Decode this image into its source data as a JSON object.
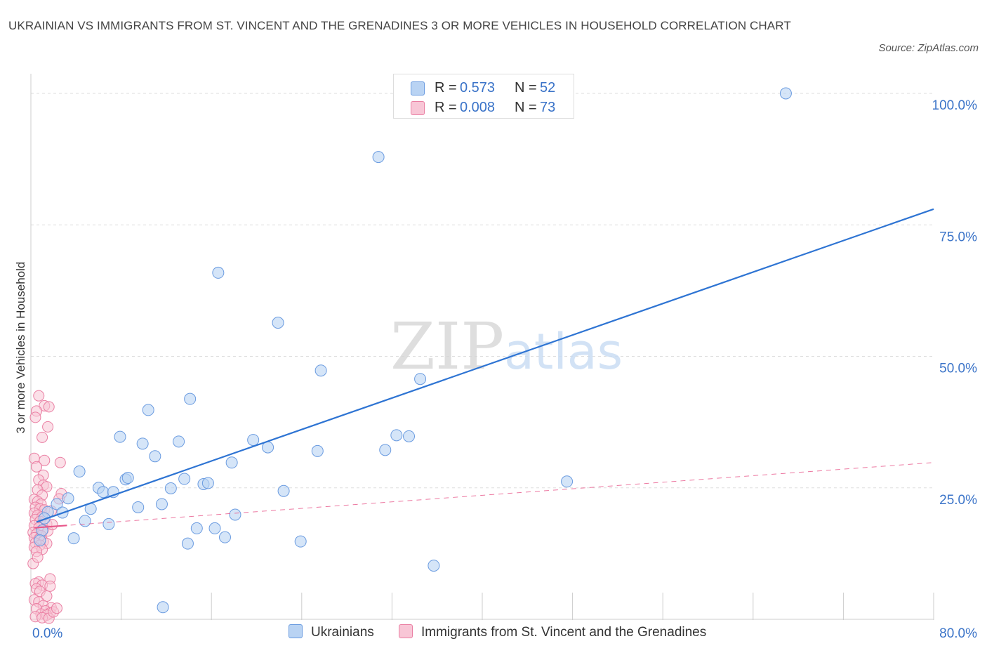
{
  "title": "UKRAINIAN VS IMMIGRANTS FROM ST. VINCENT AND THE GRENADINES 3 OR MORE VEHICLES IN HOUSEHOLD CORRELATION CHART",
  "source": "Source: ZipAtlas.com",
  "watermark": {
    "zip": "ZIP",
    "atlas": "atlas"
  },
  "legend": {
    "rows": [
      {
        "r_label": "R =",
        "r_value": "0.573",
        "n_label": "N =",
        "n_value": "52"
      },
      {
        "r_label": "R =",
        "r_value": "0.008",
        "n_label": "N =",
        "n_value": "73"
      }
    ]
  },
  "colors": {
    "blue_fill": "#b9d3f3",
    "blue_stroke": "#6a9be0",
    "blue_line": "#2e74d3",
    "pink_fill": "#f8c6d6",
    "pink_stroke": "#ea7fa3",
    "pink_line": "#e8578a",
    "tick_text": "#3a73c8",
    "grid": "#dddddd"
  },
  "chart_data": {
    "type": "scatter",
    "title": "UKRAINIAN VS IMMIGRANTS FROM ST. VINCENT AND THE GRENADINES 3 OR MORE VEHICLES IN HOUSEHOLD CORRELATION CHART",
    "xlabel": "",
    "ylabel": "3 or more Vehicles in Household",
    "xlim": [
      0,
      80
    ],
    "ylim": [
      0,
      100
    ],
    "x_tick_labels": [
      "0.0%",
      "80.0%"
    ],
    "y_ticks": [
      25,
      50,
      75,
      100
    ],
    "y_tick_labels": [
      "25.0%",
      "50.0%",
      "75.0%",
      "100.0%"
    ],
    "grid": true,
    "legend_position": "bottom",
    "series": [
      {
        "name": "Ukrainians",
        "r": 0.573,
        "n": 52,
        "trend": {
          "x": [
            0.5,
            80
          ],
          "y": [
            18.5,
            78
          ],
          "style": "solid"
        },
        "points": [
          [
            66.9,
            100.0
          ],
          [
            30.8,
            87.9
          ],
          [
            16.6,
            65.9
          ],
          [
            21.9,
            56.4
          ],
          [
            25.7,
            47.3
          ],
          [
            34.5,
            45.7
          ],
          [
            14.1,
            41.9
          ],
          [
            10.4,
            39.8
          ],
          [
            7.9,
            34.7
          ],
          [
            9.9,
            33.4
          ],
          [
            13.1,
            33.8
          ],
          [
            19.7,
            34.1
          ],
          [
            21.0,
            32.7
          ],
          [
            25.4,
            32.0
          ],
          [
            31.4,
            32.2
          ],
          [
            32.4,
            35.0
          ],
          [
            33.5,
            34.8
          ],
          [
            11.0,
            31.0
          ],
          [
            17.8,
            29.8
          ],
          [
            4.3,
            28.1
          ],
          [
            8.4,
            26.6
          ],
          [
            8.6,
            26.9
          ],
          [
            13.6,
            26.7
          ],
          [
            15.3,
            25.7
          ],
          [
            15.7,
            25.9
          ],
          [
            22.4,
            24.4
          ],
          [
            6.0,
            25.0
          ],
          [
            6.4,
            24.2
          ],
          [
            7.3,
            24.2
          ],
          [
            12.4,
            24.9
          ],
          [
            47.5,
            26.2
          ],
          [
            3.3,
            23.0
          ],
          [
            2.3,
            21.9
          ],
          [
            2.8,
            20.3
          ],
          [
            5.3,
            21.0
          ],
          [
            9.5,
            21.3
          ],
          [
            11.6,
            21.9
          ],
          [
            18.1,
            19.9
          ],
          [
            1.5,
            20.4
          ],
          [
            1.2,
            19.2
          ],
          [
            4.8,
            18.7
          ],
          [
            6.9,
            18.1
          ],
          [
            14.7,
            17.3
          ],
          [
            16.3,
            17.3
          ],
          [
            17.2,
            15.6
          ],
          [
            3.8,
            15.4
          ],
          [
            13.9,
            14.4
          ],
          [
            23.9,
            14.8
          ],
          [
            35.7,
            10.2
          ],
          [
            11.7,
            2.3
          ],
          [
            1.0,
            16.9
          ],
          [
            0.8,
            15.0
          ]
        ]
      },
      {
        "name": "Immigrants from St. Vincent and the Grenadines",
        "r": 0.008,
        "n": 73,
        "trend": {
          "x": [
            0.3,
            80
          ],
          "y": [
            17.4,
            29.8
          ],
          "style": "dashed",
          "solid_until_x": 3.2
        },
        "points": [
          [
            0.7,
            42.5
          ],
          [
            1.2,
            40.6
          ],
          [
            1.6,
            40.4
          ],
          [
            0.5,
            39.6
          ],
          [
            0.4,
            38.4
          ],
          [
            1.5,
            36.6
          ],
          [
            1.0,
            34.6
          ],
          [
            0.3,
            30.6
          ],
          [
            1.2,
            30.2
          ],
          [
            2.6,
            29.8
          ],
          [
            0.5,
            29.0
          ],
          [
            1.1,
            27.4
          ],
          [
            0.7,
            26.5
          ],
          [
            1.1,
            25.5
          ],
          [
            1.4,
            25.2
          ],
          [
            0.6,
            24.6
          ],
          [
            2.7,
            23.9
          ],
          [
            1.0,
            23.6
          ],
          [
            0.3,
            22.8
          ],
          [
            0.6,
            22.4
          ],
          [
            0.9,
            21.9
          ],
          [
            2.5,
            22.9
          ],
          [
            0.4,
            21.3
          ],
          [
            0.8,
            21.0
          ],
          [
            1.2,
            20.8
          ],
          [
            1.8,
            20.6
          ],
          [
            0.3,
            20.2
          ],
          [
            0.6,
            19.8
          ],
          [
            1.0,
            19.5
          ],
          [
            0.4,
            19.0
          ],
          [
            0.8,
            18.6
          ],
          [
            1.4,
            18.1
          ],
          [
            0.3,
            17.8
          ],
          [
            0.7,
            17.4
          ],
          [
            1.1,
            17.0
          ],
          [
            1.5,
            16.8
          ],
          [
            0.2,
            16.5
          ],
          [
            0.5,
            16.2
          ],
          [
            0.9,
            15.9
          ],
          [
            0.3,
            15.5
          ],
          [
            0.7,
            15.2
          ],
          [
            1.1,
            14.8
          ],
          [
            0.4,
            14.5
          ],
          [
            1.4,
            14.4
          ],
          [
            0.8,
            14.1
          ],
          [
            0.3,
            13.7
          ],
          [
            1.0,
            13.3
          ],
          [
            0.5,
            12.9
          ],
          [
            1.7,
            7.7
          ],
          [
            0.7,
            7.1
          ],
          [
            0.4,
            6.8
          ],
          [
            1.0,
            6.5
          ],
          [
            1.7,
            6.3
          ],
          [
            0.5,
            5.8
          ],
          [
            0.8,
            5.3
          ],
          [
            1.4,
            4.4
          ],
          [
            0.3,
            3.7
          ],
          [
            0.7,
            3.3
          ],
          [
            1.1,
            2.6
          ],
          [
            1.8,
            2.2
          ],
          [
            0.5,
            2.0
          ],
          [
            1.3,
            1.6
          ],
          [
            1.7,
            1.2
          ],
          [
            0.9,
            1.0
          ],
          [
            1.4,
            0.8
          ],
          [
            0.4,
            0.5
          ],
          [
            1.0,
            0.3
          ],
          [
            1.6,
            0.2
          ],
          [
            2.0,
            1.4
          ],
          [
            2.3,
            2.1
          ],
          [
            0.2,
            10.6
          ],
          [
            0.6,
            11.8
          ],
          [
            1.9,
            18.0
          ]
        ]
      }
    ]
  }
}
